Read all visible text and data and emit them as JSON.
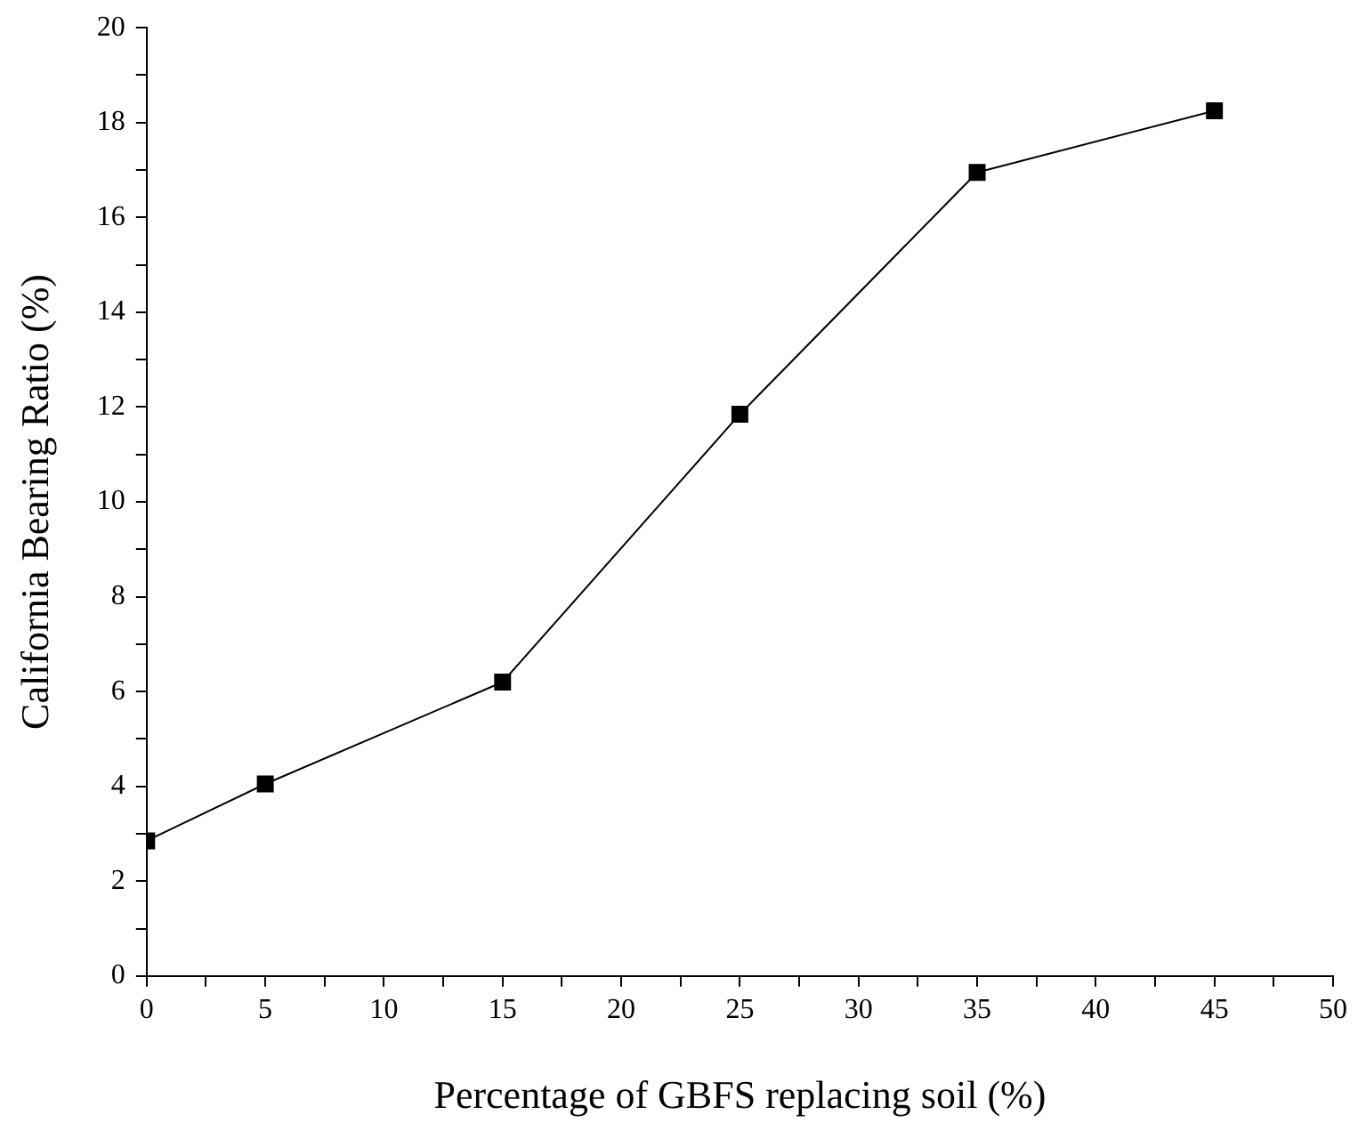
{
  "chart_data": {
    "type": "line",
    "xlabel": "Percentage of GBFS replacing soil (%)",
    "ylabel": "California Bearing Ratio (%)",
    "x": [
      0,
      5,
      15,
      25,
      35,
      45
    ],
    "series": [
      {
        "color": "#000000",
        "values": [
          2.85,
          4.05,
          6.2,
          11.85,
          16.95,
          18.25
        ]
      }
    ],
    "xlim": [
      0,
      50
    ],
    "xticks": [
      0,
      {
        "value": 2.5,
        "label": null
      },
      5,
      {
        "value": 7.5,
        "label": null
      },
      10,
      {
        "value": 12.5,
        "label": null
      },
      15,
      {
        "value": 17.5,
        "label": null
      },
      20,
      {
        "value": 22.5,
        "label": null
      },
      25,
      {
        "value": 27.5,
        "label": null
      },
      30,
      {
        "value": 32.5,
        "label": null
      },
      35,
      {
        "value": 37.5,
        "label": null
      },
      40,
      {
        "value": 42.5,
        "label": null
      },
      45,
      {
        "value": 47.5,
        "label": null
      },
      50
    ],
    "ylim": [
      0,
      20
    ],
    "yticks": [
      0,
      {
        "value": 1,
        "label": null
      },
      2,
      {
        "value": 3,
        "label": null
      },
      4,
      {
        "value": 5,
        "label": null
      },
      6,
      {
        "value": 7,
        "label": null
      },
      8,
      {
        "value": 9,
        "label": null
      },
      10,
      {
        "value": 11,
        "label": null
      },
      12,
      {
        "value": 13,
        "label": null
      },
      14,
      {
        "value": 15,
        "label": null
      },
      16,
      {
        "value": 17,
        "label": null
      },
      18,
      {
        "value": 19,
        "label": null
      },
      20
    ],
    "grid": false,
    "legend": false,
    "marker": "square",
    "line_style": "solid"
  }
}
